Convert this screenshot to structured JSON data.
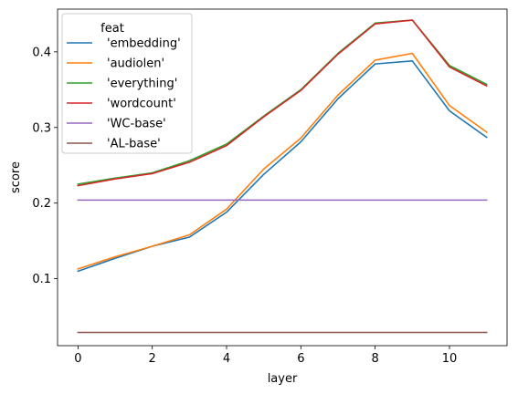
{
  "chart_data": {
    "type": "line",
    "title": "",
    "xlabel": "layer",
    "ylabel": "score",
    "xlim": [
      -0.55,
      11.55
    ],
    "ylim": [
      0.0115,
      0.4565
    ],
    "xticks": [
      0,
      2,
      4,
      6,
      8,
      10
    ],
    "yticks": [
      0.1,
      0.2,
      0.3,
      0.4
    ],
    "xtick_labels": [
      "0",
      "2",
      "4",
      "6",
      "8",
      "10"
    ],
    "ytick_labels": [
      "0.1",
      "0.2",
      "0.3",
      "0.4"
    ],
    "x": [
      0,
      1,
      2,
      3,
      4,
      5,
      6,
      7,
      8,
      9,
      10,
      11
    ],
    "legend": {
      "title": "feat",
      "placement": "upper-left"
    },
    "series": [
      {
        "name": "'embedding'",
        "color": "#1f77b4",
        "values": [
          0.11,
          0.127,
          0.143,
          0.155,
          0.188,
          0.238,
          0.281,
          0.338,
          0.384,
          0.388,
          0.322,
          0.287
        ]
      },
      {
        "name": "'audiolen'",
        "color": "#ff7f0e",
        "values": [
          0.113,
          0.129,
          0.143,
          0.158,
          0.192,
          0.245,
          0.286,
          0.343,
          0.389,
          0.398,
          0.329,
          0.294
        ]
      },
      {
        "name": "'everything'",
        "color": "#2ca02c",
        "values": [
          0.225,
          0.233,
          0.24,
          0.256,
          0.278,
          0.315,
          0.35,
          0.398,
          0.438,
          0.442,
          0.382,
          0.357
        ]
      },
      {
        "name": "'wordcount'",
        "color": "#d62728",
        "values": [
          0.223,
          0.232,
          0.239,
          0.254,
          0.276,
          0.314,
          0.349,
          0.397,
          0.437,
          0.442,
          0.38,
          0.355
        ]
      },
      {
        "name": "'WC-base'",
        "color": "#9467bd",
        "values": [
          0.204,
          0.204,
          0.204,
          0.204,
          0.204,
          0.204,
          0.204,
          0.204,
          0.204,
          0.204,
          0.204,
          0.204
        ]
      },
      {
        "name": "'AL-base'",
        "color": "#8c564b",
        "values": [
          0.029,
          0.029,
          0.029,
          0.029,
          0.029,
          0.029,
          0.029,
          0.029,
          0.029,
          0.029,
          0.029,
          0.029
        ]
      }
    ]
  }
}
